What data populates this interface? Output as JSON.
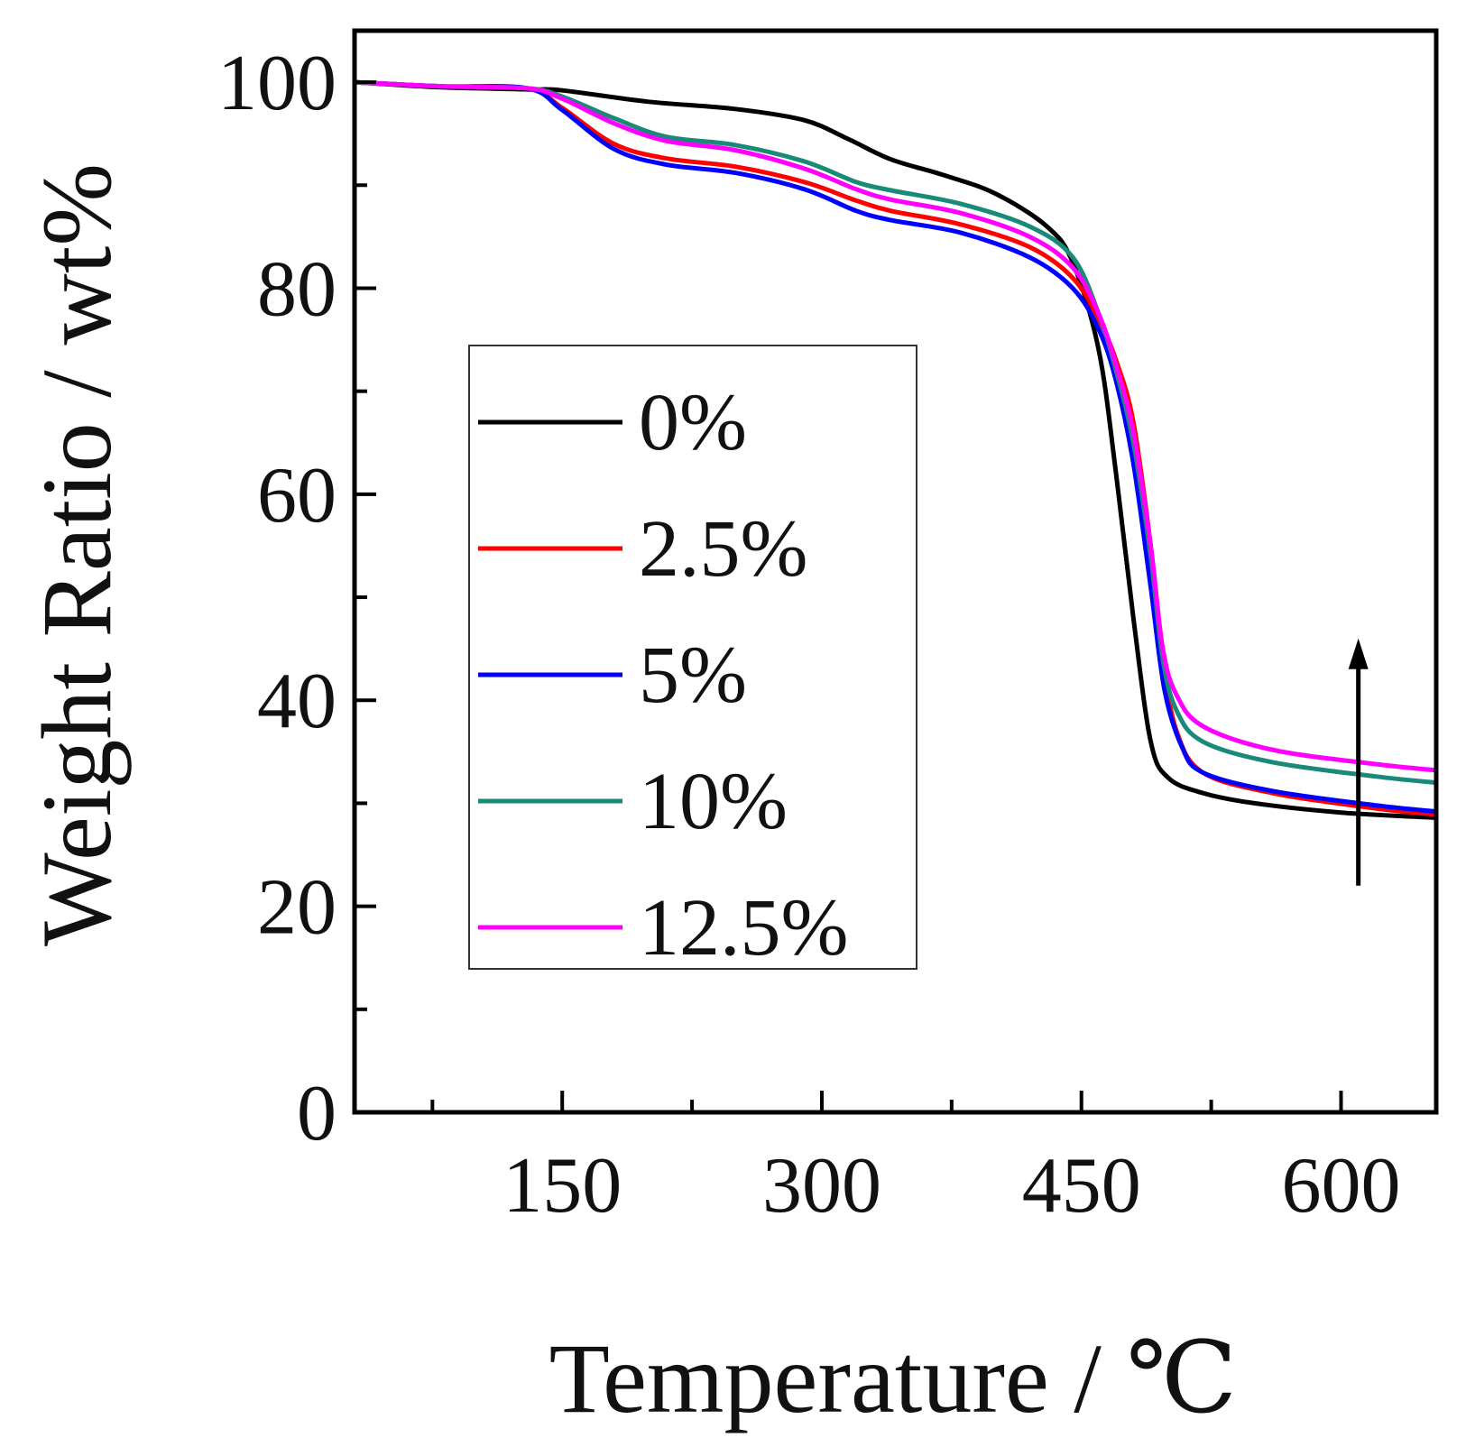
{
  "chart_data": {
    "type": "line",
    "title": "",
    "xlabel": "Temperature / ℃",
    "ylabel": "Weight Ratio / wt%",
    "xlim": [
      30,
      655
    ],
    "ylim": [
      0,
      105
    ],
    "x_ticks": [
      150,
      300,
      450,
      600
    ],
    "x_minor_ticks": [
      75,
      225,
      375,
      525
    ],
    "y_ticks": [
      0,
      20,
      40,
      60,
      80,
      100
    ],
    "y_minor_ticks": [
      10,
      30,
      50,
      70,
      90
    ],
    "grid": false,
    "legend_position": "center-left",
    "annotation": "upward arrow near 610 ℃ indicating increasing residual weight",
    "arrow": {
      "x": 610,
      "y_from": 22,
      "y_to": 46
    },
    "series": [
      {
        "name": "0%",
        "color": "#000000",
        "points": [
          [
            30,
            100
          ],
          [
            80,
            99.5
          ],
          [
            130,
            99.3
          ],
          [
            150,
            99.2
          ],
          [
            200,
            98.1
          ],
          [
            250,
            97.4
          ],
          [
            290,
            96.3
          ],
          [
            315,
            94.5
          ],
          [
            340,
            92.5
          ],
          [
            370,
            91.0
          ],
          [
            400,
            89.2
          ],
          [
            430,
            86.0
          ],
          [
            445,
            82.5
          ],
          [
            460,
            74.0
          ],
          [
            470,
            62.0
          ],
          [
            480,
            48.0
          ],
          [
            490,
            36.0
          ],
          [
            500,
            32.5
          ],
          [
            520,
            31.0
          ],
          [
            550,
            30.0
          ],
          [
            600,
            29.1
          ],
          [
            655,
            28.6
          ]
        ]
      },
      {
        "name": "2.5%",
        "color": "#ff0000",
        "points": [
          [
            30,
            100
          ],
          [
            80,
            99.6
          ],
          [
            130,
            99.4
          ],
          [
            150,
            97.5
          ],
          [
            180,
            94.0
          ],
          [
            210,
            92.6
          ],
          [
            250,
            91.8
          ],
          [
            290,
            90.3
          ],
          [
            320,
            88.5
          ],
          [
            340,
            87.5
          ],
          [
            380,
            86.2
          ],
          [
            420,
            84.0
          ],
          [
            445,
            81.0
          ],
          [
            460,
            77.0
          ],
          [
            470,
            73.0
          ],
          [
            480,
            67.0
          ],
          [
            490,
            55.0
          ],
          [
            497,
            44.0
          ],
          [
            505,
            37.0
          ],
          [
            520,
            33.0
          ],
          [
            560,
            31.0
          ],
          [
            620,
            29.5
          ],
          [
            655,
            28.9
          ]
        ]
      },
      {
        "name": "5%",
        "color": "#0000ff",
        "points": [
          [
            30,
            100
          ],
          [
            80,
            99.6
          ],
          [
            130,
            99.4
          ],
          [
            150,
            97.3
          ],
          [
            180,
            93.5
          ],
          [
            210,
            92.0
          ],
          [
            250,
            91.2
          ],
          [
            290,
            89.6
          ],
          [
            320,
            87.5
          ],
          [
            340,
            86.6
          ],
          [
            380,
            85.4
          ],
          [
            420,
            83.0
          ],
          [
            445,
            80.0
          ],
          [
            460,
            76.0
          ],
          [
            470,
            71.0
          ],
          [
            480,
            63.0
          ],
          [
            490,
            51.0
          ],
          [
            498,
            41.0
          ],
          [
            508,
            35.5
          ],
          [
            520,
            33.0
          ],
          [
            560,
            31.2
          ],
          [
            620,
            29.8
          ],
          [
            655,
            29.2
          ]
        ]
      },
      {
        "name": "10%",
        "color": "#1a8a78",
        "points": [
          [
            30,
            100
          ],
          [
            80,
            99.6
          ],
          [
            130,
            99.4
          ],
          [
            150,
            98.6
          ],
          [
            180,
            96.5
          ],
          [
            210,
            94.7
          ],
          [
            250,
            93.9
          ],
          [
            290,
            92.3
          ],
          [
            320,
            90.3
          ],
          [
            340,
            89.5
          ],
          [
            380,
            88.2
          ],
          [
            420,
            86.0
          ],
          [
            445,
            83.0
          ],
          [
            460,
            77.5
          ],
          [
            470,
            72.0
          ],
          [
            480,
            65.0
          ],
          [
            490,
            54.0
          ],
          [
            497,
            44.0
          ],
          [
            505,
            39.0
          ],
          [
            520,
            36.0
          ],
          [
            560,
            34.0
          ],
          [
            620,
            32.6
          ],
          [
            655,
            32.0
          ]
        ]
      },
      {
        "name": "12.5%",
        "color": "#ff00ff",
        "points": [
          [
            30,
            100
          ],
          [
            80,
            99.6
          ],
          [
            130,
            99.4
          ],
          [
            150,
            98.4
          ],
          [
            180,
            96.0
          ],
          [
            210,
            94.3
          ],
          [
            250,
            93.4
          ],
          [
            290,
            91.6
          ],
          [
            320,
            89.6
          ],
          [
            340,
            88.6
          ],
          [
            380,
            87.3
          ],
          [
            420,
            85.0
          ],
          [
            445,
            82.0
          ],
          [
            460,
            77.5
          ],
          [
            470,
            72.5
          ],
          [
            480,
            66.0
          ],
          [
            490,
            55.0
          ],
          [
            497,
            45.0
          ],
          [
            505,
            40.5
          ],
          [
            520,
            37.5
          ],
          [
            560,
            35.2
          ],
          [
            620,
            33.8
          ],
          [
            655,
            33.2
          ]
        ]
      }
    ]
  }
}
